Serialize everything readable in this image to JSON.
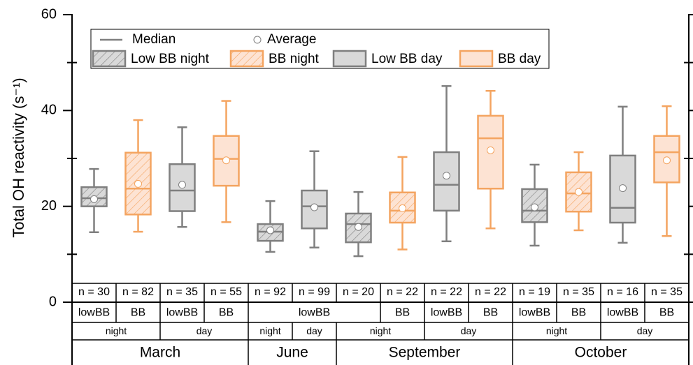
{
  "chart_data": {
    "type": "box",
    "ylabel": "Total OH reactivity (s⁻¹)",
    "ylim": [
      0,
      60
    ],
    "yticks": [
      0,
      20,
      40,
      60
    ],
    "yminorticks": [
      10,
      30,
      50
    ],
    "median_label": "Median",
    "mean_label": "Average",
    "series": [
      {
        "name": "Low BB night",
        "color": "#7f7f7f",
        "fill": "#d9d9d9",
        "hatch": true
      },
      {
        "name": "BB night",
        "color": "#f4a460",
        "fill": "#fde3d3",
        "hatch": true
      },
      {
        "name": "Low BB day",
        "color": "#7f7f7f",
        "fill": "#d9d9d9",
        "hatch": false
      },
      {
        "name": "BB day",
        "color": "#f4a460",
        "fill": "#fde3d3",
        "hatch": false
      }
    ],
    "boxes": [
      {
        "series": 0,
        "n": "n = 30",
        "whislo": 14.6,
        "q1": 20,
        "med": 21.7,
        "q3": 24,
        "whishi": 27.8,
        "mean": 21.5
      },
      {
        "series": 1,
        "n": "n = 82",
        "whislo": 14.7,
        "q1": 18.3,
        "med": 23.7,
        "q3": 31.2,
        "whishi": 38,
        "mean": 24.7
      },
      {
        "series": 2,
        "n": "n = 35",
        "whislo": 15.7,
        "q1": 19,
        "med": 23.3,
        "q3": 28.8,
        "whishi": 36.5,
        "mean": 24.5
      },
      {
        "series": 3,
        "n": "n = 55",
        "whislo": 16.7,
        "q1": 24.3,
        "med": 29.9,
        "q3": 34.7,
        "whishi": 42,
        "mean": 29.6
      },
      {
        "series": 0,
        "n": "n = 92",
        "whislo": 10.5,
        "q1": 12.8,
        "med": 14.7,
        "q3": 16.3,
        "whishi": 21.1,
        "mean": 15
      },
      {
        "series": 2,
        "n": "n = 99",
        "whislo": 11.4,
        "q1": 15.4,
        "med": 20,
        "q3": 23.3,
        "whishi": 31.5,
        "mean": 19.8
      },
      {
        "series": 0,
        "n": "n = 20",
        "whislo": 9.6,
        "q1": 12.5,
        "med": 16.3,
        "q3": 18.5,
        "whishi": 23,
        "mean": 15.7
      },
      {
        "series": 1,
        "n": "n = 22",
        "whislo": 11,
        "q1": 16.6,
        "med": 19.1,
        "q3": 22.9,
        "whishi": 30.3,
        "mean": 19.6
      },
      {
        "series": 2,
        "n": "n = 22",
        "whislo": 12.7,
        "q1": 19.1,
        "med": 24.5,
        "q3": 31.3,
        "whishi": 45.1,
        "mean": 26.4
      },
      {
        "series": 3,
        "n": "n = 22",
        "whislo": 15.4,
        "q1": 23.7,
        "med": 34.2,
        "q3": 38.9,
        "whishi": 44.1,
        "mean": 31.7
      },
      {
        "series": 0,
        "n": "n = 19",
        "whislo": 11.8,
        "q1": 16.7,
        "med": 19.1,
        "q3": 23.6,
        "whishi": 28.7,
        "mean": 19.8
      },
      {
        "series": 1,
        "n": "n = 35",
        "whislo": 15,
        "q1": 18.9,
        "med": 22.7,
        "q3": 27.1,
        "whishi": 31.3,
        "mean": 23
      },
      {
        "series": 2,
        "n": "n = 16",
        "whislo": 12.4,
        "q1": 16.6,
        "med": 19.7,
        "q3": 30.6,
        "whishi": 40.8,
        "mean": 23.8
      },
      {
        "series": 3,
        "n": "n = 35",
        "whislo": 13.8,
        "q1": 25,
        "med": 31.3,
        "q3": 34.7,
        "whishi": 40.9,
        "mean": 29.6
      }
    ],
    "type_row": [
      {
        "label": "lowBB",
        "span": 1
      },
      {
        "label": "BB",
        "span": 1
      },
      {
        "label": "lowBB",
        "span": 1
      },
      {
        "label": "BB",
        "span": 1
      },
      {
        "label": "lowBB",
        "span": 3
      },
      {
        "label": "BB",
        "span": 1
      },
      {
        "label": "lowBB",
        "span": 1
      },
      {
        "label": "BB",
        "span": 1
      },
      {
        "label": "lowBB",
        "span": 1
      },
      {
        "label": "BB",
        "span": 1
      },
      {
        "label": "lowBB",
        "span": 1
      },
      {
        "label": "BB",
        "span": 1
      }
    ],
    "time_row": [
      {
        "label": "night",
        "span": 2
      },
      {
        "label": "day",
        "span": 2
      },
      {
        "label": "night",
        "span": 1
      },
      {
        "label": "day",
        "span": 1
      },
      {
        "label": "night",
        "span": 2
      },
      {
        "label": "day",
        "span": 2
      },
      {
        "label": "night",
        "span": 2
      },
      {
        "label": "day",
        "span": 2
      }
    ],
    "month_row": [
      {
        "label": "March",
        "span": 4
      },
      {
        "label": "June",
        "span": 2
      },
      {
        "label": "September",
        "span": 4
      },
      {
        "label": "October",
        "span": 4
      }
    ]
  }
}
